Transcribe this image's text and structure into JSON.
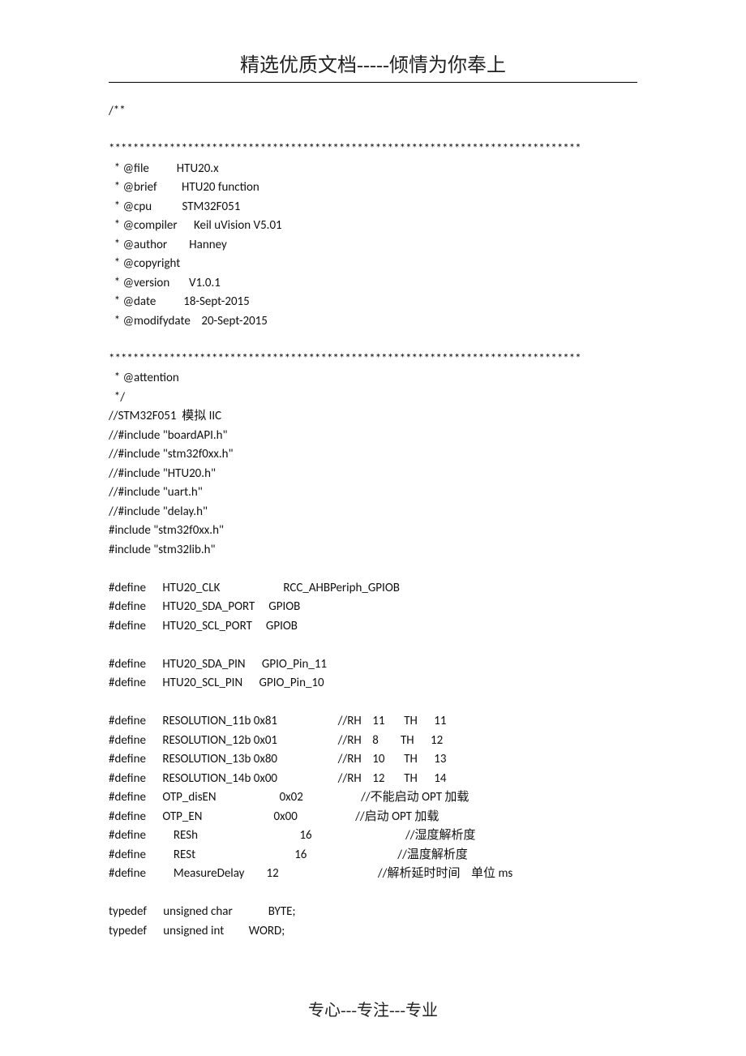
{
  "header": {
    "title": "精选优质文档-----倾情为你奉上"
  },
  "footer": {
    "text": "专心---专注---专业"
  },
  "code": {
    "l01": "/**",
    "l02": "",
    "l03": "******************************************************************************",
    "l04": "  * @file          HTU20.x",
    "l05": "  * @brief         HTU20 function",
    "l06": "  * @cpu           STM32F051",
    "l07": "  * @compiler      Keil uVision V5.01",
    "l08": "  * @author        Hanney",
    "l09": "  * @copyright",
    "l10": "  * @version       V1.0.1",
    "l11": "  * @date          18-Sept-2015",
    "l12": "  * @modifydate    20-Sept-2015",
    "l13": "",
    "l14": "******************************************************************************",
    "l15": "  * @attention",
    "l16": "  */",
    "l17a": "//STM32F051  ",
    "l17b": "模拟",
    "l17c": " IIC",
    "l18": "//#include \"boardAPI.h\"",
    "l19": "//#include \"stm32f0xx.h\"",
    "l20": "//#include \"HTU20.h\"",
    "l21": "//#include \"uart.h\"",
    "l22": "//#include \"delay.h\"",
    "l23": "#include \"stm32f0xx.h\"",
    "l24": "#include \"stm32lib.h\"",
    "l25": "",
    "l26": "#define      HTU20_CLK                       RCC_AHBPeriph_GPIOB",
    "l27": "#define      HTU20_SDA_PORT     GPIOB",
    "l28": "#define      HTU20_SCL_PORT     GPIOB",
    "l29": "",
    "l30": "#define      HTU20_SDA_PIN      GPIO_Pin_11",
    "l31": "#define      HTU20_SCL_PIN      GPIO_Pin_10",
    "l32": "",
    "l33": "#define      RESOLUTION_11b 0x81                      //RH    11       TH      11",
    "l34": "#define      RESOLUTION_12b 0x01                      //RH    8        TH      12",
    "l35": "#define      RESOLUTION_13b 0x80                      //RH    10       TH      13",
    "l36": "#define      RESOLUTION_14b 0x00                      //RH    12       TH      14",
    "l37a": "#define      OTP_disEN                       0x02                     //",
    "l37b": "不能启动",
    "l37c": " OPT ",
    "l37d": "加载",
    "l38a": "#define      OTP_EN                          0x00                     //",
    "l38b": "启动",
    "l38c": " OPT ",
    "l38d": "加载",
    "l39a": "#define          RESh                                     16                                  //",
    "l39b": "湿度解析度",
    "l40a": "#define          RESt                                    16                                 //",
    "l40b": "温度解析度",
    "l41a": "#define          MeasureDelay        12                                    //",
    "l41b": "解析延时时间",
    "l41c": "    ",
    "l41d": "单位",
    "l41e": " ms",
    "l42": "",
    "l43": "typedef      unsigned char             BYTE;",
    "l44": "typedef      unsigned int         WORD;"
  }
}
